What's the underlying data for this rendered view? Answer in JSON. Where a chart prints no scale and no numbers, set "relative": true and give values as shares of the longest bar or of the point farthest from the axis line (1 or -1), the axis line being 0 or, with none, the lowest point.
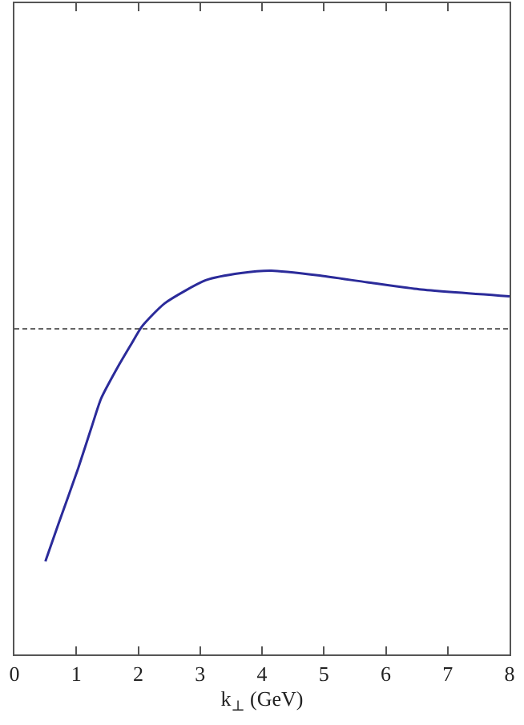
{
  "chart_data": {
    "type": "line",
    "relative": true,
    "xlabel": "k$_{⊥}$ (GeV)",
    "xlim": [
      0,
      8
    ],
    "xticks": [
      0,
      1,
      2,
      3,
      4,
      5,
      6,
      7,
      8
    ],
    "tick_labels": "x",
    "grid": false,
    "marker": "none",
    "line_style": "solid",
    "series": [
      {
        "color": "#2b2b9a",
        "x": [
          0.5,
          0.71,
          1.03,
          1.25,
          1.4,
          1.7,
          1.9,
          2.06,
          2.43,
          3.1,
          3.66,
          4.15,
          4.9,
          5.7,
          6.54,
          8.0
        ],
        "values": [
          -1,
          -0.84,
          -0.6,
          -0.42,
          -0.3,
          -0.15,
          -0.06,
          0.01,
          0.11,
          0.21,
          0.24,
          0.25,
          0.23,
          0.2,
          0.17,
          0.14
        ]
      }
    ],
    "ref_lines": [
      {
        "axis": "y",
        "value": 0,
        "line_style": "dashed",
        "color": "#333333"
      }
    ]
  }
}
